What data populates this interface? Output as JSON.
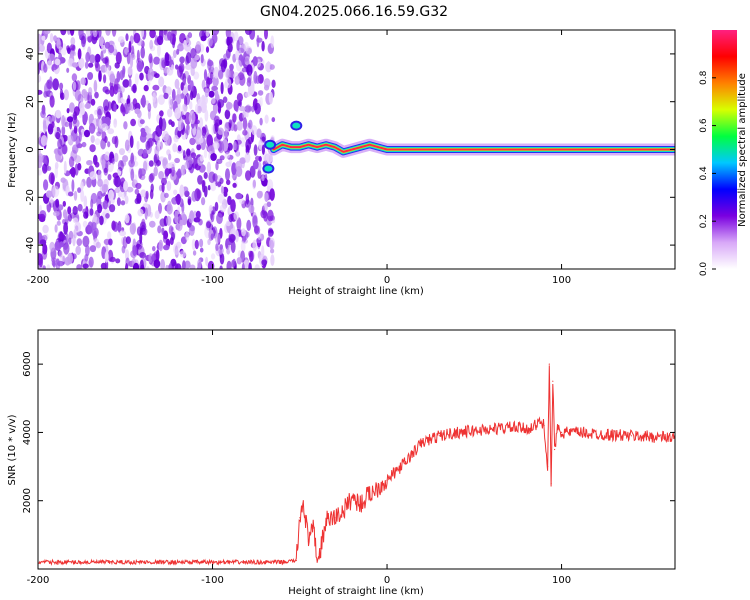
{
  "title": "GN04.2025.066.16.59.G32",
  "chart_data": [
    {
      "type": "heatmap",
      "title": "GN04.2025.066.16.59.G32",
      "xlabel": "Height of straight line (km)",
      "ylabel": "Frequency (Hz)",
      "xlim": [
        -200,
        165
      ],
      "ylim": [
        -50,
        50
      ],
      "xticks": [
        -200,
        -100,
        0,
        100
      ],
      "yticks": [
        -40,
        -20,
        0,
        20,
        40
      ],
      "colorbar": {
        "label": "Normalized spectral amplitude",
        "range": [
          0,
          1
        ],
        "ticks": [
          0.0,
          0.2,
          0.4,
          0.6,
          0.8
        ],
        "tick_labels": [
          "0.0",
          "0.2",
          "0.4",
          "0.6",
          "0.8"
        ],
        "colors": [
          "#ffffff",
          "#d8a8f8",
          "#7a00e0",
          "#0000ff",
          "#00c8ff",
          "#00ff40",
          "#d8ff00",
          "#ff8000",
          "#ff0000",
          "#ff2080"
        ]
      },
      "noise_region_x": [
        -200,
        -65
      ],
      "signal_trace": {
        "x": [
          -65,
          -60,
          -55,
          -50,
          -45,
          -40,
          -35,
          -30,
          -25,
          -20,
          -15,
          -10,
          -5,
          0,
          10,
          30,
          50,
          70,
          85,
          90,
          100,
          120,
          140,
          165
        ],
        "freq": [
          0,
          2,
          1,
          1,
          2,
          1,
          2,
          1,
          -1,
          0,
          1,
          2,
          1,
          0,
          0,
          0,
          0,
          0,
          0,
          0,
          0,
          0,
          0,
          0
        ]
      },
      "side_blobs": [
        {
          "x": -67,
          "freq": 2
        },
        {
          "x": -68,
          "freq": -8
        },
        {
          "x": -52,
          "freq": 10
        }
      ]
    },
    {
      "type": "line",
      "xlabel": "Height of straight line (km)",
      "ylabel": "SNR (10 * v/v)",
      "xlim": [
        -200,
        165
      ],
      "ylim": [
        0,
        7000
      ],
      "xticks": [
        -200,
        -100,
        0,
        100
      ],
      "yticks": [
        2000,
        4000,
        6000
      ],
      "color": "#ee3333",
      "series": [
        {
          "name": "SNR",
          "x": [
            -200,
            -150,
            -100,
            -60,
            -52,
            -50,
            -48,
            -45,
            -42,
            -40,
            -38,
            -35,
            -30,
            -25,
            -20,
            -15,
            -10,
            -5,
            0,
            10,
            20,
            30,
            40,
            50,
            60,
            70,
            80,
            85,
            88,
            90,
            92,
            93,
            94,
            95,
            96,
            98,
            100,
            110,
            120,
            140,
            165
          ],
          "y": [
            200,
            200,
            200,
            200,
            250,
            1500,
            2000,
            800,
            1200,
            200,
            600,
            1400,
            1500,
            1700,
            2100,
            1900,
            2200,
            2400,
            2600,
            3100,
            3700,
            3900,
            4000,
            4050,
            4100,
            4150,
            4100,
            4200,
            4300,
            4200,
            3000,
            6000,
            2500,
            5500,
            3500,
            4200,
            4000,
            4000,
            3950,
            3900,
            3850
          ]
        }
      ]
    }
  ]
}
